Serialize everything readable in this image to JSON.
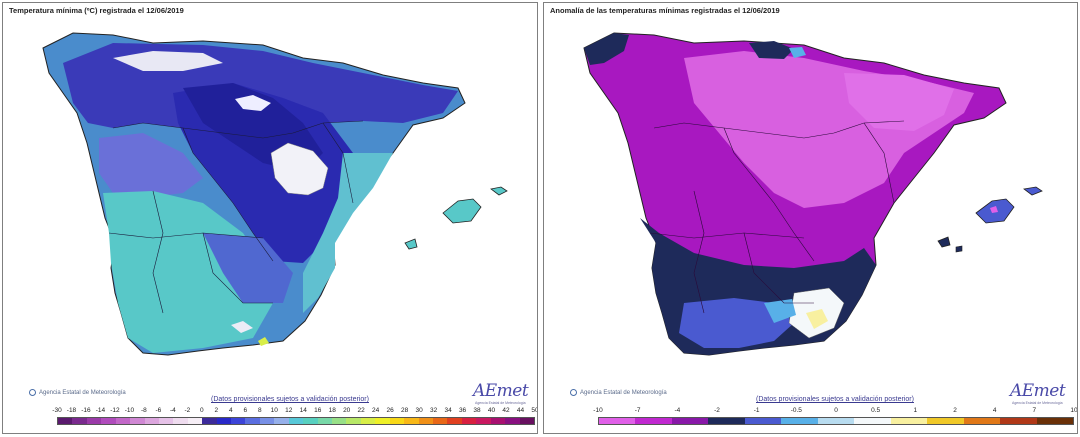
{
  "left_panel": {
    "title": "Temperatura mínima (ºC) registrada el 12/06/2019",
    "credit": "Agencia Estatal de Meteorología",
    "disclaimer": "(Datos provisionales sujetos a validación posterior)",
    "logo": "AEmet",
    "logo_sub": "Agencia Estatal de Meteorología",
    "legend_labels": [
      "-30",
      "-18",
      "-16",
      "-14",
      "-12",
      "-10",
      "-8",
      "-6",
      "-4",
      "-2",
      "0",
      "2",
      "4",
      "6",
      "8",
      "10",
      "12",
      "14",
      "16",
      "18",
      "20",
      "22",
      "24",
      "26",
      "28",
      "30",
      "32",
      "34",
      "36",
      "38",
      "40",
      "42",
      "44",
      "50"
    ],
    "legend_colors": [
      "#5a1a6e",
      "#7a2a8e",
      "#9a3aa8",
      "#b04cbc",
      "#c268c8",
      "#d088d4",
      "#dca6de",
      "#e6c2e8",
      "#efdcef",
      "#f6eef6",
      "#3c2a9a",
      "#2828c8",
      "#3c44d8",
      "#5a6ee0",
      "#7890e6",
      "#96b0ea",
      "#58c8d8",
      "#58d0c0",
      "#78d8a8",
      "#98e088",
      "#b8e868",
      "#d8ee48",
      "#eef028",
      "#f8d818",
      "#f8b818",
      "#f09018",
      "#e86818",
      "#e04020",
      "#d82040",
      "#c81860",
      "#a81070",
      "#881080",
      "#681060"
    ]
  },
  "right_panel": {
    "title": "Anomalía de las temperaturas mínimas registradas el 12/06/2019",
    "credit": "Agencia Estatal de Meteorología",
    "disclaimer": "(Datos provisionales sujetos a validación posterior)",
    "logo": "AEmet",
    "logo_sub": "Agencia Estatal de Meteorología",
    "legend_labels": [
      "-10",
      "-7",
      "-4",
      "-2",
      "-1",
      "-0.5",
      "0",
      "0.5",
      "1",
      "2",
      "4",
      "7",
      "10"
    ],
    "legend_colors": [
      "#e060e8",
      "#c028d0",
      "#8818a8",
      "#1e2a5a",
      "#4a5ad0",
      "#58b0e8",
      "#b8dcf0",
      "#f4f8fa",
      "#f8f0a0",
      "#f0c828",
      "#e07818",
      "#b03818",
      "#6a3008"
    ]
  }
}
